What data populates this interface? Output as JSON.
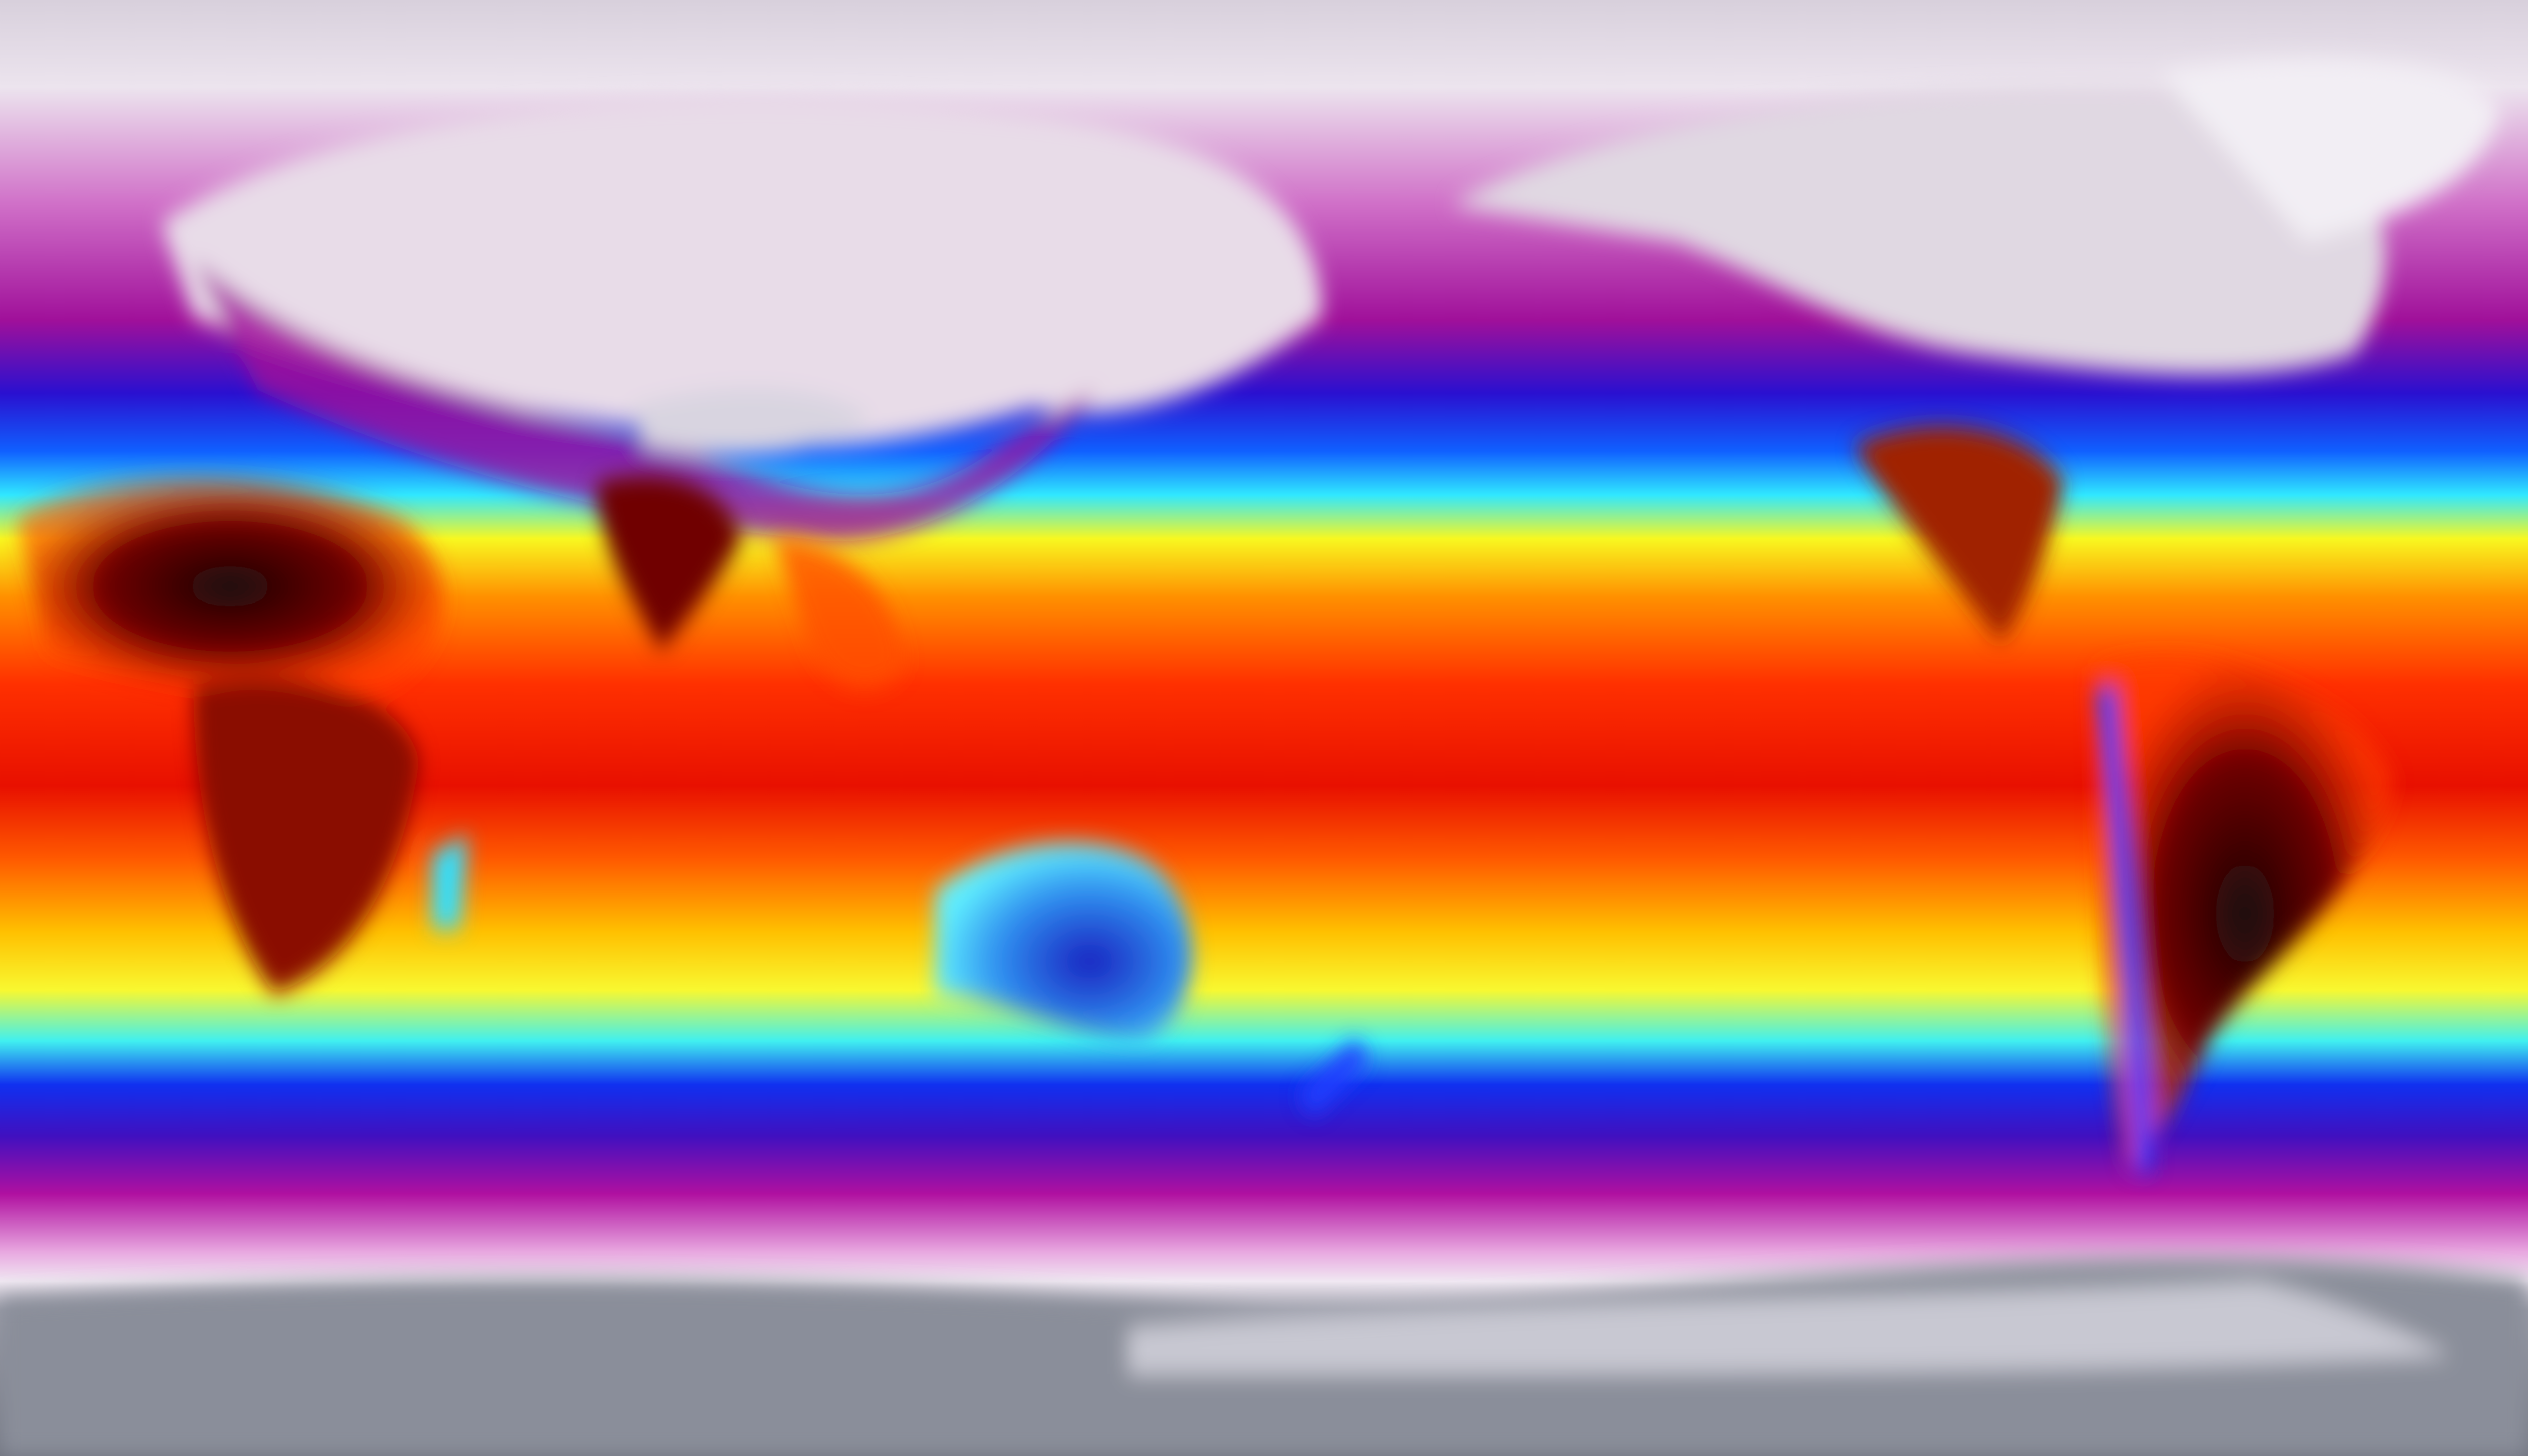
{
  "map": {
    "projection": "equirectangular",
    "extent": "global",
    "colormap": {
      "coldest": "#6e7280",
      "very_cold": "#ece4ee",
      "cold": "#b0139e",
      "cool": "#1010e0",
      "mild": "#30e8ff",
      "warm": "#f8f820",
      "hot": "#ff6a00",
      "very_hot": "#e00000",
      "hottest": "#1a0a0a"
    }
  }
}
